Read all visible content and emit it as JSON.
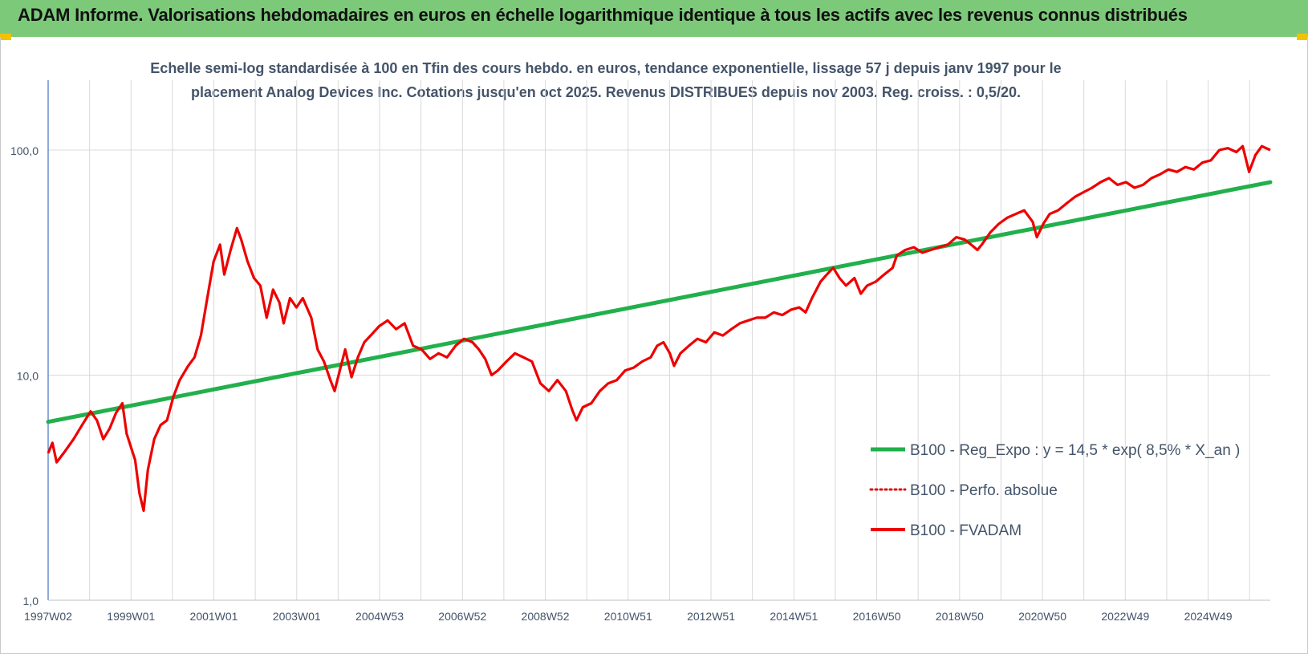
{
  "banner": {
    "title": "ADAM Informe. Valorisations hebdomadaires en euros en échelle logarithmique identique à tous les actifs avec les revenus connus distribués"
  },
  "colors": {
    "banner_bg": "#7dc97a",
    "regression": "#22b04c",
    "fvadam": "#ee0000",
    "perfo": "#dd1111",
    "grid": "#d9d9d9",
    "text": "#44546a"
  },
  "chart_data": {
    "type": "line",
    "title_line1": "Echelle semi-log standardisée à 100 en Tfin des cours hebdo. en euros, tendance exponentielle, lissage 57 j depuis janv 1997 pour le",
    "title_line2": "placement Analog Devices Inc. Cotations jusqu'en oct 2025. Revenus DISTRIBUES depuis nov 2003. Reg. croiss. : 0,5/20.",
    "y_scale": "log",
    "ylim": [
      1,
      180
    ],
    "y_ticks": [
      {
        "value": 1,
        "label": "1,0"
      },
      {
        "value": 10,
        "label": "10,0"
      },
      {
        "value": 100,
        "label": "100,0"
      }
    ],
    "x_tick_labels": [
      "1997W02",
      "1999W01",
      "2001W01",
      "2003W01",
      "2004W53",
      "2006W52",
      "2008W52",
      "2010W51",
      "2012W51",
      "2014W51",
      "2016W50",
      "2018W50",
      "2020W50",
      "2022W49",
      "2024W49"
    ],
    "x_range": [
      1997.0,
      2025.8
    ],
    "grid": "horizontal major lines and vertical year lines",
    "legend_position": "right",
    "series": [
      {
        "name": "B100 - Reg_Expo : y = 14,5 * exp( 8,5% *  X_an )",
        "style": "solid",
        "points": [
          [
            1997.0,
            6.2
          ],
          [
            2025.8,
            72.0
          ]
        ]
      },
      {
        "name": "B100 - Perfo. absolue",
        "style": "dotted",
        "points": []
      },
      {
        "name": "B100 - FVADAM",
        "style": "solid",
        "points": [
          [
            1997.0,
            4.5
          ],
          [
            1997.1,
            5.0
          ],
          [
            1997.2,
            4.1
          ],
          [
            1997.4,
            4.6
          ],
          [
            1997.6,
            5.2
          ],
          [
            1997.8,
            6.0
          ],
          [
            1998.0,
            6.9
          ],
          [
            1998.15,
            6.3
          ],
          [
            1998.3,
            5.2
          ],
          [
            1998.45,
            5.8
          ],
          [
            1998.6,
            6.8
          ],
          [
            1998.75,
            7.5
          ],
          [
            1998.85,
            5.5
          ],
          [
            1998.95,
            4.8
          ],
          [
            1999.05,
            4.2
          ],
          [
            1999.15,
            3.0
          ],
          [
            1999.25,
            2.5
          ],
          [
            1999.35,
            3.8
          ],
          [
            1999.5,
            5.2
          ],
          [
            1999.65,
            6.0
          ],
          [
            1999.8,
            6.3
          ],
          [
            1999.95,
            8.0
          ],
          [
            2000.1,
            9.5
          ],
          [
            2000.3,
            11.0
          ],
          [
            2000.45,
            12.0
          ],
          [
            2000.6,
            15.0
          ],
          [
            2000.75,
            22.0
          ],
          [
            2000.9,
            32.0
          ],
          [
            2001.05,
            38.0
          ],
          [
            2001.15,
            28.0
          ],
          [
            2001.3,
            36.0
          ],
          [
            2001.45,
            45.0
          ],
          [
            2001.55,
            40.0
          ],
          [
            2001.7,
            32.0
          ],
          [
            2001.85,
            27.0
          ],
          [
            2002.0,
            25.0
          ],
          [
            2002.15,
            18.0
          ],
          [
            2002.3,
            24.0
          ],
          [
            2002.45,
            21.0
          ],
          [
            2002.55,
            17.0
          ],
          [
            2002.7,
            22.0
          ],
          [
            2002.85,
            20.0
          ],
          [
            2003.0,
            22.0
          ],
          [
            2003.2,
            18.0
          ],
          [
            2003.35,
            13.0
          ],
          [
            2003.5,
            11.5
          ],
          [
            2003.65,
            9.5
          ],
          [
            2003.75,
            8.5
          ],
          [
            2003.9,
            11.0
          ],
          [
            2004.0,
            13.0
          ],
          [
            2004.15,
            9.8
          ],
          [
            2004.3,
            12.0
          ],
          [
            2004.45,
            14.0
          ],
          [
            2004.6,
            15.0
          ],
          [
            2004.8,
            16.5
          ],
          [
            2005.0,
            17.5
          ],
          [
            2005.2,
            16.0
          ],
          [
            2005.4,
            17.0
          ],
          [
            2005.6,
            13.5
          ],
          [
            2005.8,
            13.0
          ],
          [
            2006.0,
            11.8
          ],
          [
            2006.2,
            12.5
          ],
          [
            2006.4,
            12.0
          ],
          [
            2006.6,
            13.5
          ],
          [
            2006.8,
            14.5
          ],
          [
            2007.0,
            14.0
          ],
          [
            2007.15,
            13.0
          ],
          [
            2007.3,
            11.8
          ],
          [
            2007.45,
            10.0
          ],
          [
            2007.6,
            10.5
          ],
          [
            2007.8,
            11.5
          ],
          [
            2008.0,
            12.5
          ],
          [
            2008.2,
            12.0
          ],
          [
            2008.4,
            11.5
          ],
          [
            2008.6,
            9.2
          ],
          [
            2008.8,
            8.5
          ],
          [
            2009.0,
            9.5
          ],
          [
            2009.2,
            8.5
          ],
          [
            2009.35,
            7.0
          ],
          [
            2009.45,
            6.3
          ],
          [
            2009.6,
            7.2
          ],
          [
            2009.8,
            7.5
          ],
          [
            2010.0,
            8.5
          ],
          [
            2010.2,
            9.2
          ],
          [
            2010.4,
            9.5
          ],
          [
            2010.6,
            10.5
          ],
          [
            2010.8,
            10.8
          ],
          [
            2011.0,
            11.5
          ],
          [
            2011.2,
            12.0
          ],
          [
            2011.35,
            13.5
          ],
          [
            2011.5,
            14.0
          ],
          [
            2011.65,
            12.5
          ],
          [
            2011.75,
            11.0
          ],
          [
            2011.9,
            12.5
          ],
          [
            2012.1,
            13.5
          ],
          [
            2012.3,
            14.5
          ],
          [
            2012.5,
            14.0
          ],
          [
            2012.7,
            15.5
          ],
          [
            2012.9,
            15.0
          ],
          [
            2013.1,
            16.0
          ],
          [
            2013.3,
            17.0
          ],
          [
            2013.5,
            17.5
          ],
          [
            2013.7,
            18.0
          ],
          [
            2013.9,
            18.0
          ],
          [
            2014.1,
            19.0
          ],
          [
            2014.3,
            18.5
          ],
          [
            2014.5,
            19.5
          ],
          [
            2014.7,
            20.0
          ],
          [
            2014.85,
            19.0
          ],
          [
            2015.0,
            22.0
          ],
          [
            2015.2,
            26.0
          ],
          [
            2015.35,
            28.0
          ],
          [
            2015.5,
            30.0
          ],
          [
            2015.65,
            27.0
          ],
          [
            2015.8,
            25.0
          ],
          [
            2016.0,
            27.0
          ],
          [
            2016.15,
            23.0
          ],
          [
            2016.3,
            25.0
          ],
          [
            2016.5,
            26.0
          ],
          [
            2016.7,
            28.0
          ],
          [
            2016.9,
            30.0
          ],
          [
            2017.0,
            34.0
          ],
          [
            2017.2,
            36.0
          ],
          [
            2017.4,
            37.0
          ],
          [
            2017.6,
            35.0
          ],
          [
            2017.8,
            36.0
          ],
          [
            2018.0,
            37.0
          ],
          [
            2018.2,
            38.0
          ],
          [
            2018.4,
            41.0
          ],
          [
            2018.6,
            40.0
          ],
          [
            2018.75,
            38.0
          ],
          [
            2018.9,
            36.0
          ],
          [
            2019.0,
            38.0
          ],
          [
            2019.2,
            43.0
          ],
          [
            2019.4,
            47.0
          ],
          [
            2019.6,
            50.0
          ],
          [
            2019.8,
            52.0
          ],
          [
            2020.0,
            54.0
          ],
          [
            2020.2,
            48.0
          ],
          [
            2020.3,
            41.0
          ],
          [
            2020.45,
            47.0
          ],
          [
            2020.6,
            52.0
          ],
          [
            2020.8,
            54.0
          ],
          [
            2021.0,
            58.0
          ],
          [
            2021.2,
            62.0
          ],
          [
            2021.4,
            65.0
          ],
          [
            2021.6,
            68.0
          ],
          [
            2021.8,
            72.0
          ],
          [
            2022.0,
            75.0
          ],
          [
            2022.2,
            70.0
          ],
          [
            2022.4,
            72.0
          ],
          [
            2022.6,
            68.0
          ],
          [
            2022.8,
            70.0
          ],
          [
            2023.0,
            75.0
          ],
          [
            2023.2,
            78.0
          ],
          [
            2023.4,
            82.0
          ],
          [
            2023.6,
            80.0
          ],
          [
            2023.8,
            84.0
          ],
          [
            2024.0,
            82.0
          ],
          [
            2024.2,
            88.0
          ],
          [
            2024.4,
            90.0
          ],
          [
            2024.6,
            100.0
          ],
          [
            2024.8,
            102.0
          ],
          [
            2025.0,
            98.0
          ],
          [
            2025.15,
            104.0
          ],
          [
            2025.3,
            80.0
          ],
          [
            2025.45,
            95.0
          ],
          [
            2025.6,
            104.0
          ],
          [
            2025.8,
            100.0
          ]
        ]
      }
    ]
  }
}
